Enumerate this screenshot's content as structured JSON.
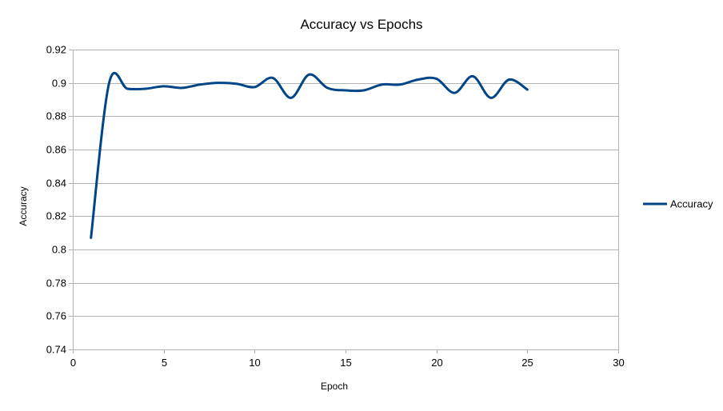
{
  "chart_data": {
    "type": "line",
    "title": "Accuracy vs Epochs",
    "xlabel": "Epoch",
    "ylabel": "Accuracy",
    "xlim": [
      0,
      30
    ],
    "ylim": [
      0.74,
      0.92
    ],
    "xticks": [
      "0",
      "5",
      "10",
      "15",
      "20",
      "25",
      "30"
    ],
    "yticks": [
      "0.74",
      "0.76",
      "0.78",
      "0.8",
      "0.82",
      "0.84",
      "0.86",
      "0.88",
      "0.9",
      "0.92"
    ],
    "grid": "horizontal",
    "legend_position": "right",
    "smoothed": true,
    "series": [
      {
        "name": "Accuracy",
        "color": "#004586",
        "x": [
          1,
          2,
          3,
          4,
          5,
          6,
          7,
          8,
          9,
          10,
          11,
          12,
          13,
          14,
          15,
          16,
          17,
          18,
          19,
          20,
          21,
          22,
          23,
          24,
          25
        ],
        "y": [
          0.807,
          0.9,
          0.8965,
          0.8965,
          0.898,
          0.897,
          0.899,
          0.9,
          0.8995,
          0.8975,
          0.903,
          0.891,
          0.905,
          0.897,
          0.8955,
          0.8955,
          0.899,
          0.899,
          0.902,
          0.9025,
          0.894,
          0.904,
          0.891,
          0.902,
          0.896
        ]
      }
    ]
  }
}
